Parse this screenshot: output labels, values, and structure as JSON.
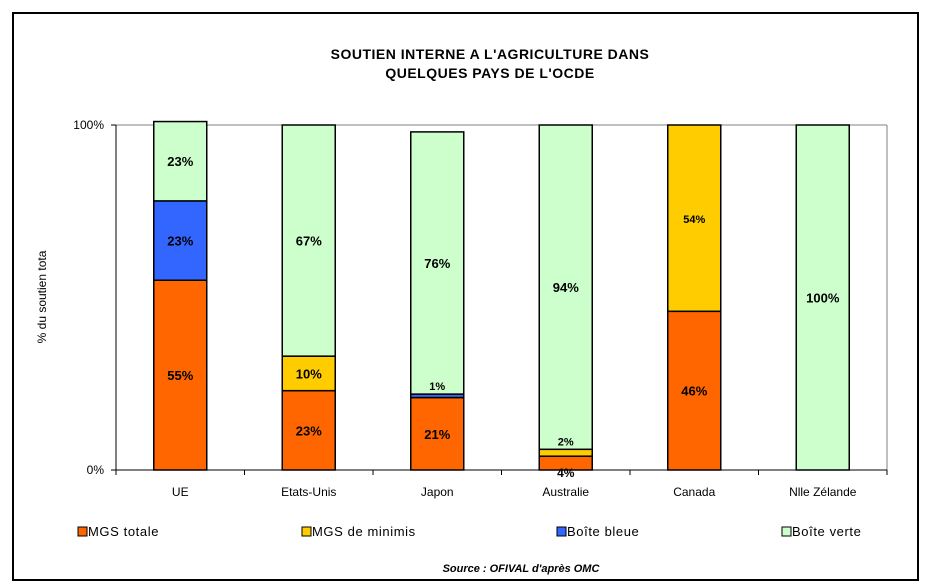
{
  "chart_data": {
    "type": "bar",
    "stacked": true,
    "percent": true,
    "title_lines": [
      "SOUTIEN INTERNE A L'AGRICULTURE DANS",
      "QUELQUES PAYS DE L'OCDE"
    ],
    "ylabel": "% du soutien tota",
    "y_ticks": [
      "0%",
      "100%"
    ],
    "ylim": [
      0,
      100
    ],
    "grid": false,
    "legend_position": "bottom",
    "source": "Source : OFIVAL d'après OMC",
    "categories": [
      "UE",
      "Etats-Unis",
      "Japon",
      "Australie",
      "Canada",
      "Nlle Zélande"
    ],
    "series": [
      {
        "name": "MGS totale",
        "color": "#ff6600",
        "values": [
          55,
          23,
          21,
          4,
          46,
          0
        ],
        "labels": [
          "55%",
          "23%",
          "21%",
          "4%",
          "46%",
          ""
        ]
      },
      {
        "name": "MGS de minimis",
        "color": "#ffcc00",
        "values": [
          0,
          10,
          0,
          2,
          54,
          0
        ],
        "labels": [
          "",
          "10%",
          "",
          "2%",
          "54%",
          ""
        ]
      },
      {
        "name": "Boîte bleue",
        "color": "#3366ff",
        "values": [
          23,
          0,
          1,
          0,
          0,
          0
        ],
        "labels": [
          "23%",
          "",
          "1%",
          "",
          "",
          ""
        ]
      },
      {
        "name": "Boîte verte",
        "color": "#ccffcc",
        "values": [
          23,
          67,
          76,
          94,
          0,
          100
        ],
        "labels": [
          "23%",
          "67%",
          "76%",
          "94%",
          "",
          "100%"
        ]
      }
    ]
  }
}
